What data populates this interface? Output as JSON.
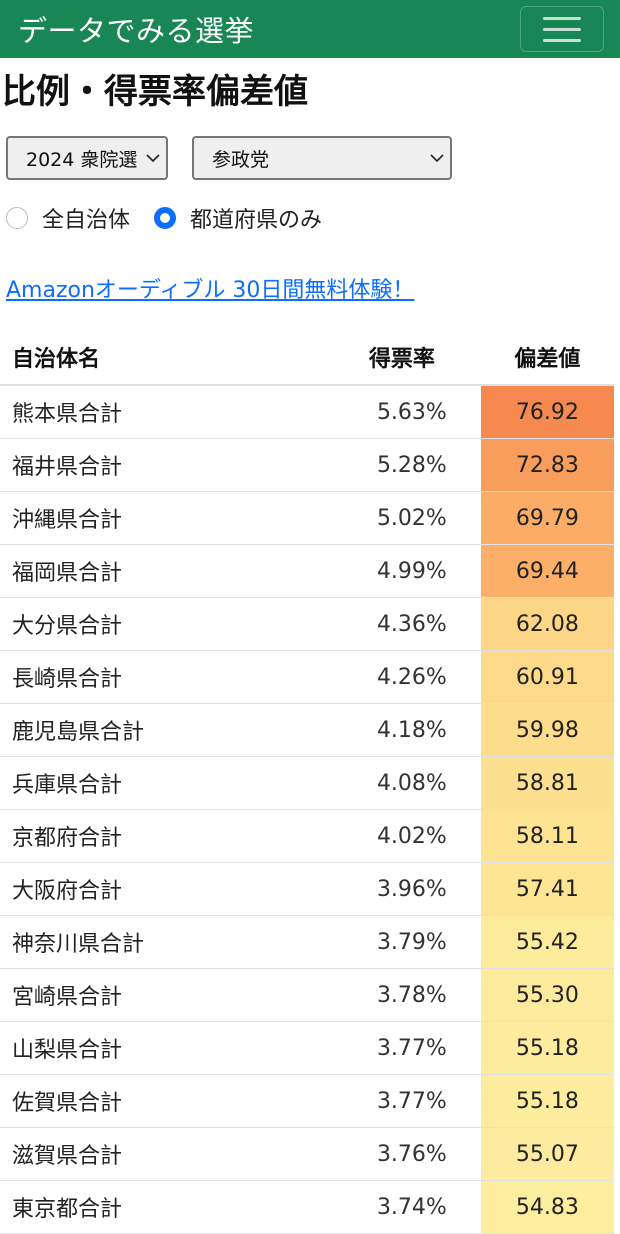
{
  "navbar": {
    "brand": "データでみる選挙",
    "menu_icon": "hamburger-icon"
  },
  "page": {
    "title": "比例・得票率偏差値"
  },
  "filters": {
    "election": "2024 衆院選",
    "party": "参政党",
    "radio_all": "全自治体",
    "radio_pref": "都道府県のみ",
    "selected_radio": "都道府県のみ"
  },
  "promo_link": "Amazonオーディブル 30日間無料体験！",
  "table": {
    "headers": [
      "自治体名",
      "得票率",
      "偏差値"
    ],
    "rows": [
      {
        "name": "熊本県合計",
        "rate": "5.63%",
        "dev": "76.92",
        "color": "#f6894f"
      },
      {
        "name": "福井県合計",
        "rate": "5.28%",
        "dev": "72.83",
        "color": "#f89d5c"
      },
      {
        "name": "沖縄県合計",
        "rate": "5.02%",
        "dev": "69.79",
        "color": "#fbad68"
      },
      {
        "name": "福岡県合計",
        "rate": "4.99%",
        "dev": "69.44",
        "color": "#fbaf69"
      },
      {
        "name": "大分県合計",
        "rate": "4.36%",
        "dev": "62.08",
        "color": "#fdd586"
      },
      {
        "name": "長崎県合計",
        "rate": "4.26%",
        "dev": "60.91",
        "color": "#fdd98a"
      },
      {
        "name": "鹿児島県合計",
        "rate": "4.18%",
        "dev": "59.98",
        "color": "#fddc8c"
      },
      {
        "name": "兵庫県合計",
        "rate": "4.08%",
        "dev": "58.81",
        "color": "#fde08f"
      },
      {
        "name": "京都府合計",
        "rate": "4.02%",
        "dev": "58.11",
        "color": "#fde392"
      },
      {
        "name": "大阪府合計",
        "rate": "3.96%",
        "dev": "57.41",
        "color": "#fde594"
      },
      {
        "name": "神奈川県合計",
        "rate": "3.79%",
        "dev": "55.42",
        "color": "#fdeb9c"
      },
      {
        "name": "宮崎県合計",
        "rate": "3.78%",
        "dev": "55.30",
        "color": "#fdeb9d"
      },
      {
        "name": "山梨県合計",
        "rate": "3.77%",
        "dev": "55.18",
        "color": "#fdec9e"
      },
      {
        "name": "佐賀県合計",
        "rate": "3.77%",
        "dev": "55.18",
        "color": "#fdec9e"
      },
      {
        "name": "滋賀県合計",
        "rate": "3.76%",
        "dev": "55.07",
        "color": "#fdec9f"
      },
      {
        "name": "東京都合計",
        "rate": "3.74%",
        "dev": "54.83",
        "color": "#fded9f"
      }
    ]
  }
}
